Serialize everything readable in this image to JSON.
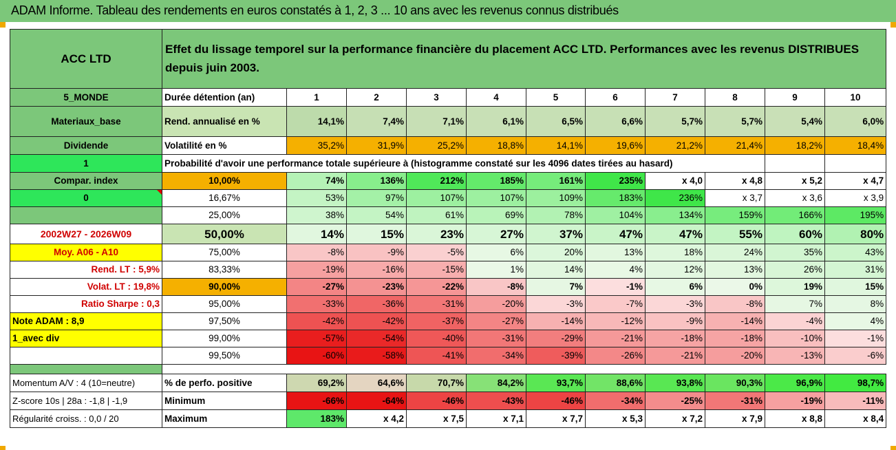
{
  "title": "ADAM Informe. Tableau des rendements en euros constatés à 1, 2, 3 ... 10 ans avec les revenus connus distribués",
  "header": {
    "fund": "ACC LTD",
    "description": "Effet du lissage temporel sur la performance financière du placement ACC LTD. Performances avec les revenus DISTRIBUES depuis juin 2003."
  },
  "years": [
    "1",
    "2",
    "3",
    "4",
    "5",
    "6",
    "7",
    "8",
    "9",
    "10"
  ],
  "rows": {
    "duree": {
      "side": "5_MONDE",
      "label": "Durée détention (an)"
    },
    "rend": {
      "side": "Materiaux_base",
      "label": "Rend. annualisé en %",
      "values": [
        "14,1%",
        "7,4%",
        "7,1%",
        "6,1%",
        "6,5%",
        "6,6%",
        "5,7%",
        "5,7%",
        "5,4%",
        "6,0%"
      ]
    },
    "vol": {
      "side": "Dividende",
      "label": "Volatilité en %",
      "values": [
        "35,2%",
        "31,9%",
        "25,2%",
        "18,8%",
        "14,1%",
        "19,6%",
        "21,2%",
        "21,4%",
        "18,2%",
        "18,4%"
      ]
    },
    "proba": {
      "side": "1",
      "label": "Probabilité d'avoir une performance totale supérieure à (histogramme constaté sur les 4096 dates tirées au hasard)"
    }
  },
  "percentile_rows": [
    {
      "side": "Compar. index",
      "pct": "10,00%",
      "values": [
        "74%",
        "136%",
        "212%",
        "185%",
        "161%",
        "235%",
        "x 4,0",
        "x 4,8",
        "x 5,2",
        "x 4,7"
      ]
    },
    {
      "side": "0",
      "pct": "16,67%",
      "values": [
        "53%",
        "97%",
        "107%",
        "107%",
        "109%",
        "183%",
        "236%",
        "x 3,7",
        "x 3,6",
        "x 3,9"
      ]
    },
    {
      "side": "",
      "pct": "25,00%",
      "values": [
        "38%",
        "54%",
        "61%",
        "69%",
        "78%",
        "104%",
        "134%",
        "159%",
        "166%",
        "195%"
      ]
    },
    {
      "side": "2002W27 - 2026W09",
      "pct": "50,00%",
      "values": [
        "14%",
        "15%",
        "23%",
        "27%",
        "37%",
        "47%",
        "47%",
        "55%",
        "60%",
        "80%"
      ]
    },
    {
      "side": "Moy. A06 - A10",
      "pct": "75,00%",
      "values": [
        "-8%",
        "-9%",
        "-5%",
        "6%",
        "20%",
        "13%",
        "18%",
        "24%",
        "35%",
        "43%"
      ]
    },
    {
      "side": "Rend. LT :    5,9%",
      "pct": "83,33%",
      "values": [
        "-19%",
        "-16%",
        "-15%",
        "1%",
        "14%",
        "4%",
        "12%",
        "13%",
        "26%",
        "31%"
      ]
    },
    {
      "side": "Volat. LT :    19,8%",
      "pct": "90,00%",
      "values": [
        "-27%",
        "-23%",
        "-22%",
        "-8%",
        "7%",
        "-1%",
        "6%",
        "0%",
        "19%",
        "15%"
      ]
    },
    {
      "side": "Ratio Sharpe :    0,3",
      "pct": "95,00%",
      "values": [
        "-33%",
        "-36%",
        "-31%",
        "-20%",
        "-3%",
        "-7%",
        "-3%",
        "-8%",
        "7%",
        "8%"
      ]
    },
    {
      "side": "Note ADAM : 8,9",
      "pct": "97,50%",
      "values": [
        "-42%",
        "-42%",
        "-37%",
        "-27%",
        "-14%",
        "-12%",
        "-9%",
        "-14%",
        "-4%",
        "4%"
      ]
    },
    {
      "side": "1_avec div",
      "pct": "99,00%",
      "values": [
        "-57%",
        "-54%",
        "-40%",
        "-31%",
        "-29%",
        "-21%",
        "-18%",
        "-18%",
        "-10%",
        "-1%"
      ]
    },
    {
      "side": "",
      "pct": "99,50%",
      "values": [
        "-60%",
        "-58%",
        "-41%",
        "-34%",
        "-39%",
        "-26%",
        "-21%",
        "-20%",
        "-13%",
        "-6%"
      ]
    }
  ],
  "stats_rows": [
    {
      "side": "Momentum A/V : 4 (10=neutre)",
      "label": "% de perfo. positive",
      "values": [
        "69,2%",
        "64,6%",
        "70,7%",
        "84,2%",
        "93,7%",
        "88,6%",
        "93,8%",
        "90,3%",
        "96,9%",
        "98,7%"
      ]
    },
    {
      "side": "Z-score 10s | 28a : -1,8 | -1,9",
      "label": "Minimum",
      "values": [
        "-66%",
        "-64%",
        "-46%",
        "-43%",
        "-46%",
        "-34%",
        "-25%",
        "-31%",
        "-19%",
        "-11%"
      ]
    },
    {
      "side": "Régularité croiss. : 0,0 / 20",
      "label": "Maximum",
      "values": [
        "183%",
        "x 4,2",
        "x 7,5",
        "x 7,1",
        "x 7,7",
        "x 5,3",
        "x 7,2",
        "x 7,9",
        "x 8,8",
        "x 8,4"
      ]
    }
  ],
  "colors": {
    "header_green": "#7cc77a",
    "orange": "#f5b000",
    "yellow": "#ffff00",
    "light_green": "#c9e4b3",
    "red_text": "#d00000"
  }
}
